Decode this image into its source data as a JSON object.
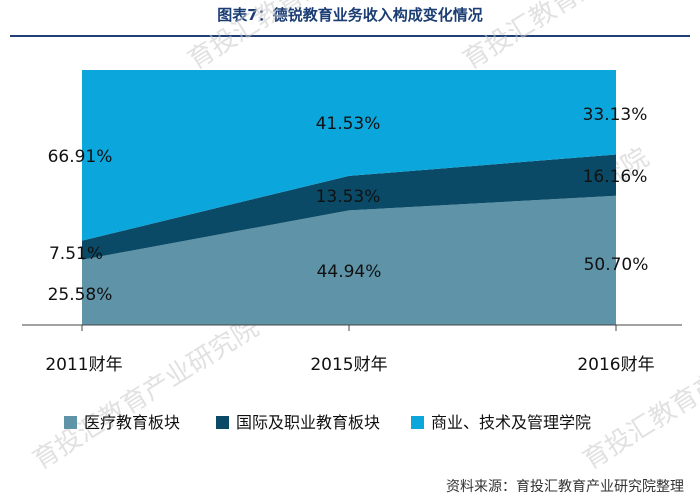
{
  "header": {
    "title": "图表7：德锐教育业务收入构成变化情况"
  },
  "chart_data": {
    "type": "area",
    "stacked": true,
    "percent": true,
    "categories": [
      "2011财年",
      "2015财年",
      "2016财年"
    ],
    "series": [
      {
        "name": "医疗教育板块",
        "values": [
          25.58,
          44.94,
          50.7
        ],
        "labels": [
          "25.58%",
          "44.94%",
          "50.70%"
        ],
        "color": "#5e93a8"
      },
      {
        "name": "国际及职业教育板块",
        "values": [
          7.51,
          13.53,
          16.16
        ],
        "labels": [
          "7.51%",
          "13.53%",
          "16.16%"
        ],
        "color": "#0b4a66"
      },
      {
        "name": "商业、技术及管理学院",
        "values": [
          66.91,
          41.53,
          33.13
        ],
        "labels": [
          "66.91%",
          "41.53%",
          "33.13%"
        ],
        "color": "#0aa6dc"
      }
    ],
    "ylim": [
      0,
      100
    ],
    "legend_position": "bottom"
  },
  "footer": {
    "source": "资料来源：育投汇教育产业研究院整理"
  },
  "watermark": {
    "text": "育投汇教育产业研究院"
  }
}
